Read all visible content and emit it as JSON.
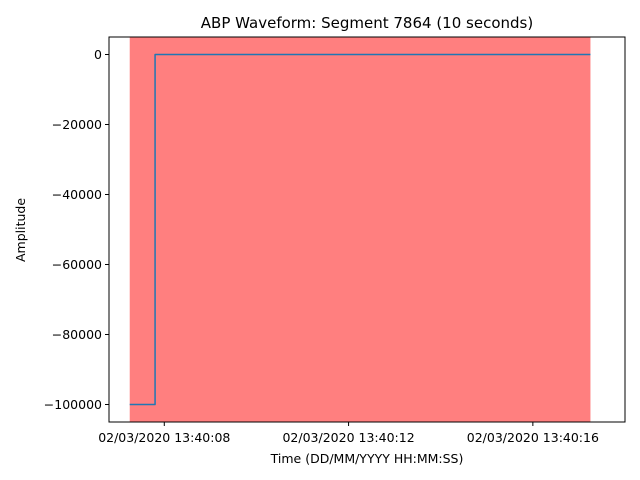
{
  "chart_data": {
    "type": "line",
    "title": "ABP Waveform: Segment 7864 (10 seconds)",
    "xlabel": "Time (DD/MM/YYYY HH:MM:SS)",
    "ylabel": "Amplitude",
    "x_tick_labels": [
      {
        "t": 8,
        "label": "02/03/2020 13:40:08"
      },
      {
        "t": 12,
        "label": "02/03/2020 13:40:12"
      },
      {
        "t": 16,
        "label": "02/03/2020 13:40:16"
      }
    ],
    "y_ticks": [
      0,
      -20000,
      -40000,
      -60000,
      -80000,
      -100000
    ],
    "y_tick_labels": [
      "0",
      "−20000",
      "−40000",
      "−60000",
      "−80000",
      "−100000"
    ],
    "xlim": [
      6.8,
      18.0
    ],
    "ylim": [
      -105000,
      5000
    ],
    "grid": false,
    "highlight_region": {
      "x_start": 7.25,
      "x_end": 17.25,
      "color": "#ff7f7f"
    },
    "series": [
      {
        "color": "#1f77b4",
        "points": [
          {
            "x": 7.25,
            "y": -100000
          },
          {
            "x": 7.8,
            "y": -100000
          },
          {
            "x": 7.8,
            "y": 0
          },
          {
            "x": 17.25,
            "y": 0
          }
        ]
      }
    ]
  }
}
